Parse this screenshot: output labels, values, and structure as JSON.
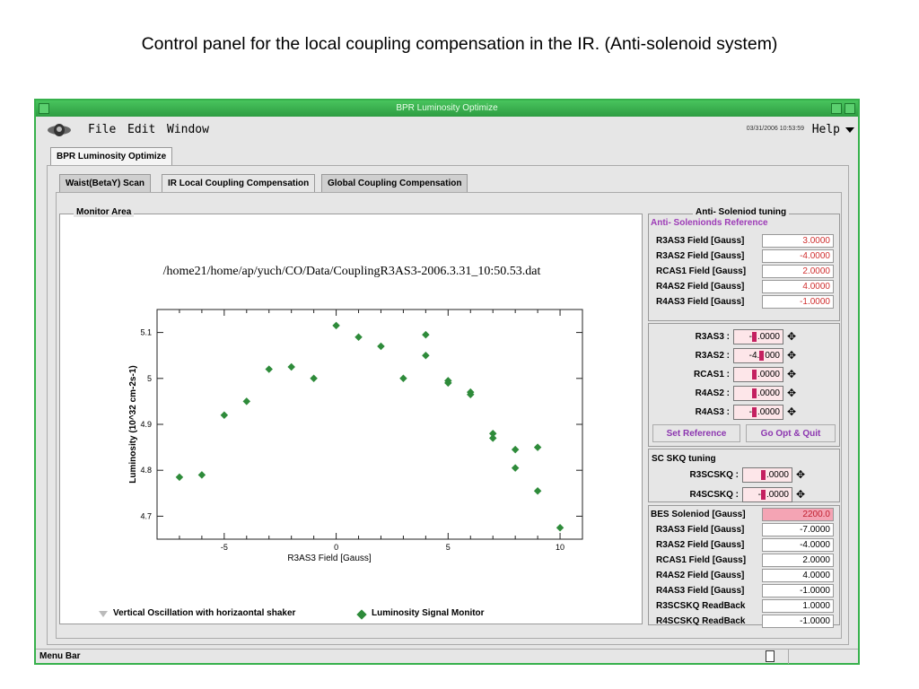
{
  "caption": "Control panel for the local coupling compensation in the IR. (Anti-solenoid system)",
  "window": {
    "title": "BPR Luminosity Optimize",
    "menu": {
      "file": "File",
      "edit": "Edit",
      "window": "Window",
      "help": "Help",
      "date": "03/31/2006 10:53:59"
    },
    "top_tab": "BPR Luminosity Optimize",
    "sub_tabs": [
      "Waist(BetaY) Scan",
      "IR Local Coupling Compensation",
      "Global Coupling Compensation"
    ],
    "active_sub_tab": "IR Local Coupling Compensation",
    "status_bar": "Menu Bar"
  },
  "monitor": {
    "legend": "Monitor Area",
    "filename": "/home21/home/ap/yuch/CO/Data/CouplingR3AS3-2006.3.31_10:50.53.dat",
    "legend_items": [
      "Vertical Oscillation with horizaontal shaker",
      "Luminosity Signal Monitor"
    ]
  },
  "chart_data": {
    "type": "scatter",
    "xlabel": "R3AS3 Field [Gauss]",
    "ylabel": "Luminosity (10^32 cm-2s-1)",
    "xlim": [
      -8,
      11
    ],
    "ylim": [
      4.65,
      5.15
    ],
    "xticks": [
      -5,
      0,
      5,
      10
    ],
    "yticks": [
      4.7,
      4.8,
      4.9,
      5,
      5.1
    ],
    "xtick_labels": [
      "-5",
      "0",
      "5",
      "10"
    ],
    "ytick_labels": [
      "4.7",
      "4.8",
      "4.9",
      "5",
      "5.1"
    ],
    "series": [
      {
        "marker_color": "#2e8b3a",
        "points": [
          [
            -7,
            4.785
          ],
          [
            -6,
            4.79
          ],
          [
            -5,
            4.92
          ],
          [
            -4,
            4.95
          ],
          [
            -3,
            5.02
          ],
          [
            -2,
            5.025
          ],
          [
            -1,
            5.0
          ],
          [
            0,
            5.115
          ],
          [
            1,
            5.09
          ],
          [
            2,
            5.07
          ],
          [
            3,
            5.0
          ],
          [
            4,
            5.095
          ],
          [
            4,
            5.05
          ],
          [
            5,
            4.995
          ],
          [
            5,
            4.99
          ],
          [
            6,
            4.97
          ],
          [
            6,
            4.965
          ],
          [
            7,
            4.88
          ],
          [
            7,
            4.87
          ],
          [
            8,
            4.845
          ],
          [
            8,
            4.805
          ],
          [
            9,
            4.85
          ],
          [
            9,
            4.755
          ],
          [
            10,
            4.675
          ]
        ]
      }
    ]
  },
  "tuning": {
    "legend": "Anti- Soleniod tuning",
    "reference_title": "Anti- Solenionds Reference",
    "reference": [
      {
        "label": "R3AS3  Field [Gauss]",
        "value": "3.0000"
      },
      {
        "label": "R3AS2  Field [Gauss]",
        "value": "-4.0000"
      },
      {
        "label": "RCAS1  Field [Gauss]",
        "value": "2.0000"
      },
      {
        "label": "R4AS2  Field [Gauss]",
        "value": "4.0000"
      },
      {
        "label": "R4AS3  Field [Gauss]",
        "value": "-1.0000"
      }
    ],
    "controls": [
      {
        "label": "R3AS3 :",
        "before": "-",
        "after": ".0000"
      },
      {
        "label": "R3AS2 :",
        "before": "-4.",
        "after": "000"
      },
      {
        "label": "RCAS1 :",
        "before": "",
        "after": ".0000"
      },
      {
        "label": "R4AS2 :",
        "before": "",
        "after": ".0000"
      },
      {
        "label": "R4AS3 :",
        "before": "-",
        "after": ".0000"
      }
    ],
    "set_reference": "Set Reference",
    "go_opt_quit": "Go Opt & Quit",
    "sc_skq_title": "SC SKQ tuning",
    "skq_controls": [
      {
        "label": "R3SCSKQ :",
        "before": "",
        "after": ".0000"
      },
      {
        "label": "R4SCSKQ :",
        "before": "-",
        "after": ".0000"
      }
    ],
    "bes_label": "BES Soleniod [Gauss]",
    "bes_value": "2200.0",
    "readback": [
      {
        "label": "R3AS3  Field [Gauss]",
        "value": "-7.0000"
      },
      {
        "label": "R3AS2  Field [Gauss]",
        "value": "-4.0000"
      },
      {
        "label": "RCAS1  Field [Gauss]",
        "value": "2.0000"
      },
      {
        "label": "R4AS2  Field [Gauss]",
        "value": "4.0000"
      },
      {
        "label": "R4AS3  Field [Gauss]",
        "value": "-1.0000"
      },
      {
        "label": "R3SCSKQ  ReadBack",
        "value": "1.0000"
      },
      {
        "label": "R4SCSKQ  ReadBack",
        "value": "-1.0000"
      }
    ]
  }
}
